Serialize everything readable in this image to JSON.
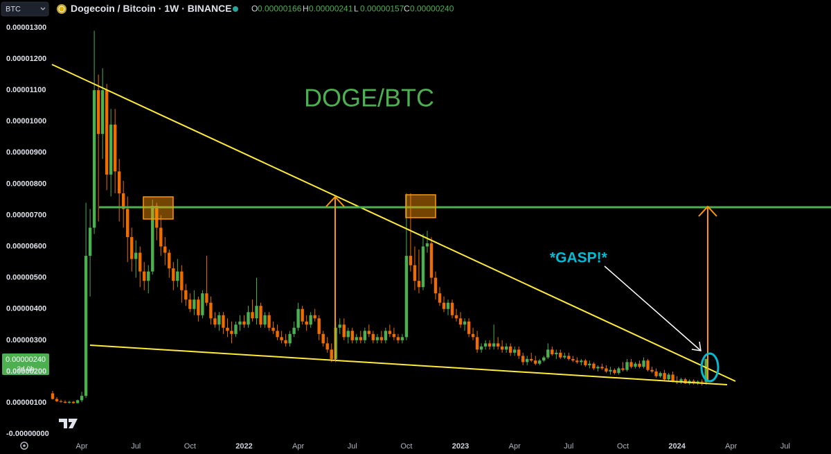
{
  "header": {
    "symbol_selector": "BTC",
    "title": "Dogecoin / Bitcoin · 1W · BINANCE",
    "ohlc_legend": [
      {
        "label": "O",
        "value": "0.00000166"
      },
      {
        "label": "H",
        "value": "0.00000241"
      },
      {
        "label": "L",
        "value": "0.00000157"
      },
      {
        "label": "C",
        "value": "0.00000240"
      }
    ]
  },
  "price_tag": {
    "price": "0.00000240",
    "countdown": "2d 0h"
  },
  "chart_data": {
    "type": "candlestick",
    "annotations": [
      "DOGE/BTC",
      "*GASP!*"
    ],
    "up_color": "#4caf50",
    "down_color": "#ef6c00",
    "grid": false,
    "series": [
      {
        "name": "Dogecoin / Bitcoin",
        "open": [
          1.3e-06,
          1.12e-06,
          1.05e-06,
          1.03e-06,
          1e-06,
          1.03e-06,
          9.9e-07,
          1.08e-06,
          1.22e-06,
          5.7e-06,
          6.6e-06,
          1.1e-05,
          9.6e-06,
          1.1e-05,
          8.3e-06,
          9.9e-06,
          8.4e-06,
          7.7e-06,
          7.2e-06,
          6.3e-06,
          5.6e-06,
          5.8e-06,
          5.2e-06,
          4.9e-06,
          5.2e-06,
          7.3e-06,
          6.6e-06,
          6e-06,
          5.8e-06,
          5.3e-06,
          4.9e-06,
          5.2e-06,
          4.6e-06,
          4.3e-06,
          4e-06,
          4.3e-06,
          3.8e-06,
          4.5e-06,
          4.2e-06,
          3.7e-06,
          3.5e-06,
          3.8e-06,
          3.4e-06,
          3.3e-06,
          3.2e-06,
          3.5e-06,
          3.6e-06,
          3.5e-06,
          3.9e-06,
          3.7e-06,
          4.1e-06,
          3.5e-06,
          3.8e-06,
          3.4e-06,
          3.3e-06,
          3.1e-06,
          3e-06,
          2.9e-06,
          3.2e-06,
          3.4e-06,
          4e-06,
          3.6e-06,
          3.5e-06,
          3.8e-06,
          3.7e-06,
          3.2e-06,
          2.9e-06,
          2.7e-06,
          2.4e-06,
          3.4e-06,
          3.5e-06,
          3.1e-06,
          3.3e-06,
          3e-06,
          3.1e-06,
          3e-06,
          3.3e-06,
          3.2e-06,
          3e-06,
          3.1e-06,
          3e-06,
          3.3e-06,
          3.2e-06,
          3.1e-06,
          3e-06,
          3.1e-06,
          5.7e-06,
          5.4e-06,
          4.9e-06,
          4.7e-06,
          6e-06,
          6.1e-06,
          5e-06,
          4.5e-06,
          4.2e-06,
          4e-06,
          4.2e-06,
          3.8e-06,
          3.7e-06,
          3.5e-06,
          3.6e-06,
          3.2e-06,
          3.1e-06,
          2.7e-06,
          2.8e-06,
          2.9e-06,
          2.8e-06,
          2.9e-06,
          2.8e-06,
          2.7e-06,
          2.8e-06,
          2.6e-06,
          2.7e-06,
          2.5e-06,
          2.3e-06,
          2.4e-06,
          2.35e-06,
          2.25e-06,
          2.35e-06,
          2.45e-06,
          2.7e-06,
          2.55e-06,
          2.6e-06,
          2.45e-06,
          2.5e-06,
          2.4e-06,
          2.35e-06,
          2.3e-06,
          2.35e-06,
          2.2e-06,
          2.25e-06,
          2.1e-06,
          2.15e-06,
          2.1e-06,
          2e-06,
          2.05e-06,
          1.95e-06,
          2.1e-06,
          2.05e-06,
          2.3e-06,
          2.15e-06,
          2.25e-06,
          2.15e-06,
          2.35e-06,
          2.05e-06,
          2e-06,
          1.85e-06,
          1.95e-06,
          1.75e-06,
          1.9e-06,
          1.7e-06,
          1.65e-06,
          1.75e-06,
          1.62e-06,
          1.7e-06,
          1.64e-06,
          1.68e-06,
          1.66e-06
        ],
        "high": [
          1.38e-06,
          1.18e-06,
          1.1e-06,
          1.08e-06,
          1.06e-06,
          1.06e-06,
          1.1e-06,
          1.35e-06,
          7.4e-06,
          7.2e-06,
          1.29e-05,
          1.15e-05,
          1.17e-05,
          1.12e-05,
          1.04e-05,
          1.04e-05,
          8.8e-06,
          8.1e-06,
          7.6e-06,
          6.6e-06,
          6.2e-06,
          6e-06,
          5.5e-06,
          5.4e-06,
          7.5e-06,
          7.4e-06,
          7e-06,
          6.3e-06,
          5.9e-06,
          5.5e-06,
          5.6e-06,
          5.4e-06,
          4.8e-06,
          4.5e-06,
          4.6e-06,
          4.4e-06,
          4.6e-06,
          5.7e-06,
          4.4e-06,
          3.9e-06,
          3.9e-06,
          3.9e-06,
          3.7e-06,
          3.6e-06,
          3.6e-06,
          3.8e-06,
          3.8e-06,
          4.1e-06,
          4.3e-06,
          5e-06,
          4.2e-06,
          3.9e-06,
          3.9e-06,
          3.6e-06,
          3.5e-06,
          3.3e-06,
          3.2e-06,
          3.3e-06,
          3.6e-06,
          4.2e-06,
          4.1e-06,
          3.8e-06,
          3.9e-06,
          4e-06,
          3.8e-06,
          3.3e-06,
          3.1e-06,
          2.9e-06,
          3.6e-06,
          3.7e-06,
          3.7e-06,
          3.4e-06,
          3.4e-06,
          3.2e-06,
          3.3e-06,
          3.4e-06,
          3.5e-06,
          3.3e-06,
          3.2e-06,
          3.3e-06,
          3.4e-06,
          3.5e-06,
          3.4e-06,
          3.2e-06,
          3.2e-06,
          7.7e-06,
          7.7e-06,
          6e-06,
          5.9e-06,
          6.4e-06,
          6.5e-06,
          6.3e-06,
          5.2e-06,
          4.7e-06,
          4.4e-06,
          4.3e-06,
          4.3e-06,
          4e-06,
          3.9e-06,
          3.7e-06,
          3.7e-06,
          3.4e-06,
          3.3e-06,
          2.9e-06,
          3e-06,
          3e-06,
          3.5e-06,
          3.1e-06,
          3e-06,
          2.9e-06,
          2.9e-06,
          2.8e-06,
          2.8e-06,
          2.6e-06,
          2.5e-06,
          2.6e-06,
          2.5e-06,
          2.4e-06,
          2.5e-06,
          2.9e-06,
          2.8e-06,
          2.7e-06,
          2.7e-06,
          2.6e-06,
          2.6e-06,
          2.5e-06,
          2.45e-06,
          2.4e-06,
          2.4e-06,
          2.35e-06,
          2.3e-06,
          2.2e-06,
          2.25e-06,
          2.2e-06,
          2.15e-06,
          2.1e-06,
          2.15e-06,
          2.3e-06,
          2.4e-06,
          2.4e-06,
          2.3e-06,
          2.35e-06,
          2.45e-06,
          2.4e-06,
          2.15e-06,
          2.1e-06,
          2e-06,
          2.05e-06,
          1.95e-06,
          2e-06,
          1.85e-06,
          1.8e-06,
          1.8e-06,
          1.75e-06,
          1.75e-06,
          1.72e-06,
          1.75e-06,
          2.41e-06
        ],
        "low": [
          1.1e-06,
          1.02e-06,
          1e-06,
          9.8e-07,
          9.7e-07,
          9.7e-07,
          9.7e-07,
          1.02e-06,
          1.15e-06,
          4.4e-06,
          6.4e-06,
          6.8e-06,
          8.8e-06,
          7.8e-06,
          7.6e-06,
          7.7e-06,
          6.8e-06,
          6.6e-06,
          5.5e-06,
          5.2e-06,
          5e-06,
          4.7e-06,
          4.6e-06,
          4.5e-06,
          5.1e-06,
          6.2e-06,
          5.7e-06,
          5.4e-06,
          5e-06,
          4.6e-06,
          4.7e-06,
          4.2e-06,
          4.1e-06,
          3.9e-06,
          3.8e-06,
          3.6e-06,
          3.7e-06,
          4.1e-06,
          3.5e-06,
          3.4e-06,
          3.3e-06,
          3.2e-06,
          3.1e-06,
          2.9e-06,
          3.1e-06,
          3.3e-06,
          3.4e-06,
          3.4e-06,
          3.6e-06,
          3.5e-06,
          3.4e-06,
          3.4e-06,
          3.3e-06,
          3.2e-06,
          3e-06,
          2.9e-06,
          2.8e-06,
          2.8e-06,
          3.1e-06,
          3.3e-06,
          3.5e-06,
          3.3e-06,
          3.4e-06,
          3.6e-06,
          3e-06,
          2.8e-06,
          2.6e-06,
          2.3e-06,
          2.3e-06,
          3.2e-06,
          3e-06,
          2.9e-06,
          2.9e-06,
          2.9e-06,
          2.9e-06,
          2.9e-06,
          3.1e-06,
          2.9e-06,
          2.9e-06,
          2.9e-06,
          2.9e-06,
          3.1e-06,
          3e-06,
          2.9e-06,
          2.9e-06,
          3e-06,
          5.2e-06,
          4.6e-06,
          4.5e-06,
          4.6e-06,
          5.8e-06,
          4.8e-06,
          4.3e-06,
          4.1e-06,
          3.9e-06,
          3.8e-06,
          3.7e-06,
          3.6e-06,
          3.4e-06,
          3.3e-06,
          3.1e-06,
          3e-06,
          2.6e-06,
          2.6e-06,
          2.7e-06,
          2.7e-06,
          2.7e-06,
          2.7e-06,
          2.6e-06,
          2.6e-06,
          2.5e-06,
          2.5e-06,
          2.4e-06,
          2.2e-06,
          2.2e-06,
          2.3e-06,
          2.2e-06,
          2.2e-06,
          2.3e-06,
          2.4e-06,
          2.5e-06,
          2.4e-06,
          2.4e-06,
          2.4e-06,
          2.35e-06,
          2.3e-06,
          2.25e-06,
          2.2e-06,
          2.15e-06,
          2.1e-06,
          2.05e-06,
          2e-06,
          2.05e-06,
          1.95e-06,
          1.9e-06,
          1.9e-06,
          1.9e-06,
          2e-06,
          2e-06,
          2.1e-06,
          2.1e-06,
          2.1e-06,
          2.1e-06,
          2e-06,
          1.95e-06,
          1.8e-06,
          1.8e-06,
          1.7e-06,
          1.7e-06,
          1.65e-06,
          1.6e-06,
          1.6e-06,
          1.6e-06,
          1.57e-06,
          1.58e-06,
          1.57e-06,
          1.55e-06,
          1.57e-06
        ],
        "close": [
          1.12e-06,
          1.05e-06,
          1.03e-06,
          1e-06,
          1.03e-06,
          9.9e-07,
          1.08e-06,
          1.22e-06,
          5.7e-06,
          6.6e-06,
          1.1e-05,
          9.6e-06,
          1.1e-05,
          8.3e-06,
          9.9e-06,
          8.4e-06,
          7.7e-06,
          7.2e-06,
          6.3e-06,
          5.6e-06,
          5.8e-06,
          5.2e-06,
          4.9e-06,
          5.2e-06,
          7.3e-06,
          6.6e-06,
          6e-06,
          5.8e-06,
          5.3e-06,
          4.9e-06,
          5.2e-06,
          4.6e-06,
          4.3e-06,
          4e-06,
          4.3e-06,
          3.8e-06,
          4.5e-06,
          4.2e-06,
          3.7e-06,
          3.5e-06,
          3.8e-06,
          3.4e-06,
          3.3e-06,
          3.2e-06,
          3.5e-06,
          3.6e-06,
          3.5e-06,
          3.9e-06,
          3.7e-06,
          4.1e-06,
          3.5e-06,
          3.8e-06,
          3.4e-06,
          3.3e-06,
          3.1e-06,
          3e-06,
          2.9e-06,
          3.2e-06,
          3.4e-06,
          4e-06,
          3.6e-06,
          3.5e-06,
          3.8e-06,
          3.7e-06,
          3.2e-06,
          2.9e-06,
          2.7e-06,
          2.4e-06,
          3.4e-06,
          3.5e-06,
          3.1e-06,
          3.3e-06,
          3e-06,
          3.1e-06,
          3e-06,
          3.3e-06,
          3.2e-06,
          3e-06,
          3.1e-06,
          3e-06,
          3.3e-06,
          3.2e-06,
          3.1e-06,
          3e-06,
          3.1e-06,
          5.7e-06,
          5.4e-06,
          4.9e-06,
          4.7e-06,
          6e-06,
          6.1e-06,
          5e-06,
          4.5e-06,
          4.2e-06,
          4e-06,
          4.2e-06,
          3.8e-06,
          3.7e-06,
          3.5e-06,
          3.6e-06,
          3.2e-06,
          3.1e-06,
          2.7e-06,
          2.8e-06,
          2.9e-06,
          2.8e-06,
          2.9e-06,
          2.8e-06,
          2.7e-06,
          2.8e-06,
          2.6e-06,
          2.7e-06,
          2.5e-06,
          2.3e-06,
          2.4e-06,
          2.35e-06,
          2.25e-06,
          2.35e-06,
          2.45e-06,
          2.7e-06,
          2.55e-06,
          2.6e-06,
          2.45e-06,
          2.5e-06,
          2.4e-06,
          2.35e-06,
          2.3e-06,
          2.35e-06,
          2.2e-06,
          2.25e-06,
          2.1e-06,
          2.15e-06,
          2.1e-06,
          2e-06,
          2.05e-06,
          1.95e-06,
          2.1e-06,
          2.05e-06,
          2.3e-06,
          2.15e-06,
          2.25e-06,
          2.15e-06,
          2.35e-06,
          2.05e-06,
          2e-06,
          1.85e-06,
          1.95e-06,
          1.75e-06,
          1.9e-06,
          1.7e-06,
          1.65e-06,
          1.75e-06,
          1.62e-06,
          1.7e-06,
          1.64e-06,
          1.68e-06,
          1.66e-06,
          2.4e-06
        ]
      }
    ],
    "xlim": [
      -1,
      187
    ],
    "xticks": [
      {
        "value": 7,
        "label": "Apr"
      },
      {
        "value": 20,
        "label": "Jul"
      },
      {
        "value": 33,
        "label": "Oct"
      },
      {
        "value": 46,
        "label": "2022"
      },
      {
        "value": 59,
        "label": "Apr"
      },
      {
        "value": 72,
        "label": "Jul"
      },
      {
        "value": 85,
        "label": "Oct"
      },
      {
        "value": 98,
        "label": "2023"
      },
      {
        "value": 111,
        "label": "Apr"
      },
      {
        "value": 124,
        "label": "Jul"
      },
      {
        "value": 137,
        "label": "Oct"
      },
      {
        "value": 150,
        "label": "2024"
      },
      {
        "value": 163,
        "label": "Apr"
      },
      {
        "value": 176,
        "label": "Jul"
      }
    ],
    "ylim": [
      -1.3e-07,
      1.322e-05
    ],
    "yticks": [
      {
        "value": 0,
        "label": "-0.00000000"
      },
      {
        "value": 1e-06,
        "label": "0.00000100"
      },
      {
        "value": 2e-06,
        "label": "0.00000200"
      },
      {
        "value": 3e-06,
        "label": "0.00000300"
      },
      {
        "value": 4e-06,
        "label": "0.00000400"
      },
      {
        "value": 5e-06,
        "label": "0.00000500"
      },
      {
        "value": 6e-06,
        "label": "0.00000600"
      },
      {
        "value": 7e-06,
        "label": "0.00000700"
      },
      {
        "value": 8e-06,
        "label": "0.00000800"
      },
      {
        "value": 9e-06,
        "label": "0.00000900"
      },
      {
        "value": 1e-05,
        "label": "0.00001000"
      },
      {
        "value": 1.1e-05,
        "label": "0.00001100"
      },
      {
        "value": 1.2e-05,
        "label": "0.00001200"
      },
      {
        "value": 1.3e-05,
        "label": "0.00001300"
      }
    ]
  }
}
